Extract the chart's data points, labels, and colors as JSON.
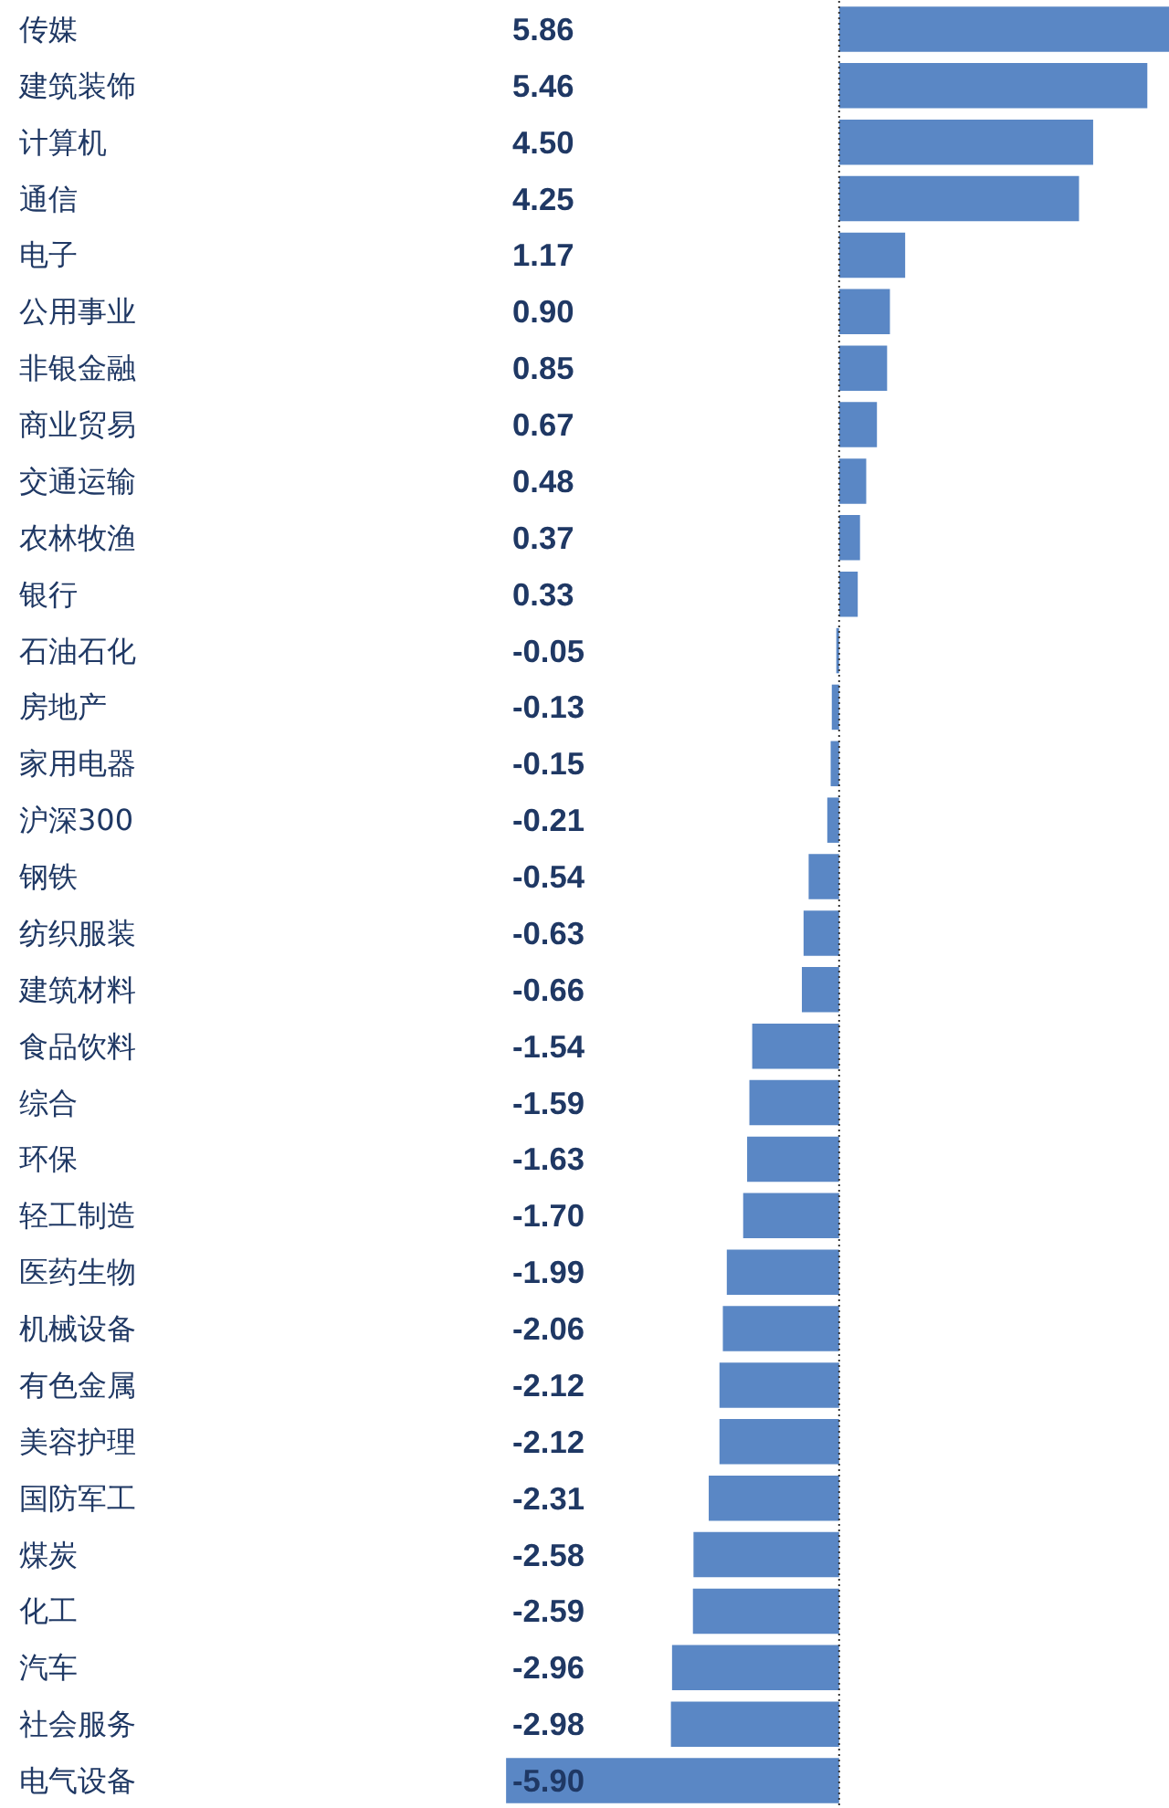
{
  "chart_data": {
    "type": "bar",
    "orientation": "horizontal",
    "categories": [
      "传媒",
      "建筑装饰",
      "计算机",
      "通信",
      "电子",
      "公用事业",
      "非银金融",
      "商业贸易",
      "交通运输",
      "农林牧渔",
      "银行",
      "石油石化",
      "房地产",
      "家用电器",
      "沪深300",
      "钢铁",
      "纺织服装",
      "建筑材料",
      "食品饮料",
      "综合",
      "环保",
      "轻工制造",
      "医药生物",
      "机械设备",
      "有色金属",
      "美容护理",
      "国防军工",
      "煤炭",
      "化工",
      "汽车",
      "社会服务",
      "电气设备"
    ],
    "values": [
      5.86,
      5.46,
      4.5,
      4.25,
      1.17,
      0.9,
      0.85,
      0.67,
      0.48,
      0.37,
      0.33,
      -0.05,
      -0.13,
      -0.15,
      -0.21,
      -0.54,
      -0.63,
      -0.66,
      -1.54,
      -1.59,
      -1.63,
      -1.7,
      -1.99,
      -2.06,
      -2.12,
      -2.12,
      -2.31,
      -2.58,
      -2.59,
      -2.96,
      -2.98,
      -5.9
    ],
    "value_labels": [
      "5.86",
      "5.46",
      "4.50",
      "4.25",
      "1.17",
      "0.90",
      "0.85",
      "0.67",
      "0.48",
      "0.37",
      "0.33",
      "-0.05",
      "-0.13",
      "-0.15",
      "-0.21",
      "-0.54",
      "-0.63",
      "-0.66",
      "-1.54",
      "-1.59",
      "-1.63",
      "-1.70",
      "-1.99",
      "-2.06",
      "-2.12",
      "-2.12",
      "-2.31",
      "-2.58",
      "-2.59",
      "-2.96",
      "-2.98",
      "-5.90"
    ],
    "color": "#5a87c5",
    "ref_lines": [
      {
        "axis": "x",
        "value": 0,
        "label": null,
        "color": "#333333",
        "line_style": "dotted"
      }
    ]
  }
}
